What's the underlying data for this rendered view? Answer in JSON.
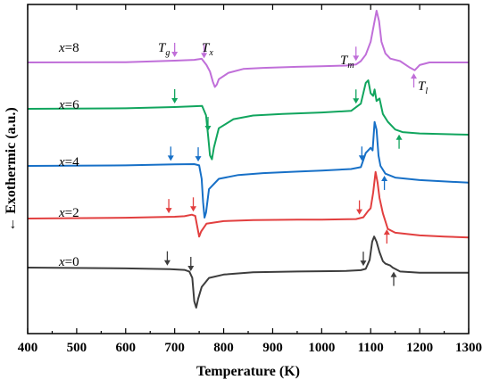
{
  "chart_data": {
    "type": "line",
    "xlabel": "Temperature (K)",
    "ylabel": "← Exothermic (a.u.)",
    "xlim": [
      400,
      1300
    ],
    "xticks": [
      400,
      500,
      600,
      700,
      800,
      900,
      1000,
      1100,
      1200,
      1300
    ],
    "y_tick_labels_shown": false,
    "grid": false,
    "legend": "none",
    "annotations": [
      "T_g",
      "T_x",
      "T_m",
      "T_l"
    ],
    "series": [
      {
        "name": "x=8",
        "prefix": "x",
        "suffix": "=8",
        "color": "#c06fd9",
        "points": [
          [
            400,
            0
          ],
          [
            600,
            0.1
          ],
          [
            700,
            0.7
          ],
          [
            740,
            1.0
          ],
          [
            755,
            1.4
          ],
          [
            765,
            -1.0
          ],
          [
            772,
            -3.5
          ],
          [
            778,
            -7.5
          ],
          [
            782,
            -9.5
          ],
          [
            786,
            -8.5
          ],
          [
            790,
            -6.5
          ],
          [
            810,
            -4.0
          ],
          [
            840,
            -2.5
          ],
          [
            880,
            -2.1
          ],
          [
            950,
            -1.7
          ],
          [
            1000,
            -1.5
          ],
          [
            1050,
            -1.2
          ],
          [
            1070,
            -0.8
          ],
          [
            1080,
            0.5
          ],
          [
            1090,
            3.0
          ],
          [
            1100,
            8.0
          ],
          [
            1106,
            14.0
          ],
          [
            1112,
            20.0
          ],
          [
            1117,
            16.0
          ],
          [
            1122,
            8.0
          ],
          [
            1130,
            3.5
          ],
          [
            1140,
            1.5
          ],
          [
            1160,
            0.5
          ],
          [
            1180,
            -2.0
          ],
          [
            1190,
            -3.0
          ],
          [
            1200,
            -1.0
          ],
          [
            1220,
            0
          ],
          [
            1300,
            0
          ]
        ],
        "arrows": [
          [
            700,
            "down"
          ],
          [
            760,
            "down"
          ],
          [
            1070,
            "down"
          ],
          [
            1188,
            "up"
          ]
        ]
      },
      {
        "name": "x=6",
        "prefix": "x",
        "suffix": "=6",
        "color": "#11a55e",
        "points": [
          [
            400,
            0
          ],
          [
            600,
            0.2
          ],
          [
            700,
            0.7
          ],
          [
            740,
            1.0
          ],
          [
            756,
            1.1
          ],
          [
            764,
            -2.5
          ],
          [
            768,
            -10.0
          ],
          [
            772,
            -18.0
          ],
          [
            776,
            -19.5
          ],
          [
            780,
            -15.0
          ],
          [
            790,
            -7.5
          ],
          [
            820,
            -4.0
          ],
          [
            860,
            -2.6
          ],
          [
            920,
            -2.0
          ],
          [
            1000,
            -1.4
          ],
          [
            1060,
            -0.8
          ],
          [
            1080,
            2.0
          ],
          [
            1090,
            10.0
          ],
          [
            1095,
            11.0
          ],
          [
            1100,
            6.0
          ],
          [
            1105,
            5.0
          ],
          [
            1108,
            7.5
          ],
          [
            1112,
            3.0
          ],
          [
            1118,
            4.0
          ],
          [
            1125,
            -2.0
          ],
          [
            1135,
            -5.0
          ],
          [
            1150,
            -8.0
          ],
          [
            1165,
            -9.0
          ],
          [
            1200,
            -9.5
          ],
          [
            1300,
            -10.0
          ]
        ],
        "arrows": [
          [
            700,
            "down"
          ],
          [
            768,
            "down"
          ],
          [
            1070,
            "down"
          ],
          [
            1158,
            "up"
          ]
        ]
      },
      {
        "name": "x=4",
        "prefix": "x",
        "suffix": "=4",
        "color": "#1770c7",
        "points": [
          [
            400,
            0
          ],
          [
            600,
            0.2
          ],
          [
            700,
            0.6
          ],
          [
            740,
            0.7
          ],
          [
            750,
            0.2
          ],
          [
            755,
            -5.0
          ],
          [
            758,
            -14.0
          ],
          [
            761,
            -20.0
          ],
          [
            764,
            -18.0
          ],
          [
            770,
            -9.0
          ],
          [
            790,
            -5.0
          ],
          [
            830,
            -3.5
          ],
          [
            880,
            -2.8
          ],
          [
            950,
            -2.2
          ],
          [
            1000,
            -1.8
          ],
          [
            1060,
            -1.2
          ],
          [
            1080,
            -0.5
          ],
          [
            1090,
            5.0
          ],
          [
            1095,
            6.0
          ],
          [
            1100,
            7.0
          ],
          [
            1104,
            6.0
          ],
          [
            1108,
            17.0
          ],
          [
            1112,
            14.0
          ],
          [
            1116,
            4.0
          ],
          [
            1120,
            0
          ],
          [
            1130,
            -3.0
          ],
          [
            1150,
            -4.5
          ],
          [
            1200,
            -5.5
          ],
          [
            1250,
            -6.0
          ],
          [
            1300,
            -6.5
          ]
        ],
        "arrows": [
          [
            692,
            "down"
          ],
          [
            748,
            "down"
          ],
          [
            1082,
            "down"
          ],
          [
            1128,
            "up"
          ]
        ]
      },
      {
        "name": "x=2",
        "prefix": "x",
        "suffix": "=2",
        "color": "#e23f3f",
        "points": [
          [
            400,
            0
          ],
          [
            600,
            0.3
          ],
          [
            700,
            0.7
          ],
          [
            720,
            0.9
          ],
          [
            735,
            1.5
          ],
          [
            742,
            1.0
          ],
          [
            746,
            -3.0
          ],
          [
            750,
            -7.0
          ],
          [
            754,
            -5.0
          ],
          [
            765,
            -2.0
          ],
          [
            800,
            -1.0
          ],
          [
            860,
            -0.6
          ],
          [
            950,
            -0.4
          ],
          [
            1000,
            -0.4
          ],
          [
            1070,
            -0.2
          ],
          [
            1085,
            0.5
          ],
          [
            1095,
            3.0
          ],
          [
            1100,
            4.0
          ],
          [
            1105,
            10.0
          ],
          [
            1110,
            18.0
          ],
          [
            1114,
            14.0
          ],
          [
            1118,
            8.0
          ],
          [
            1125,
            2.0
          ],
          [
            1135,
            -4.0
          ],
          [
            1150,
            -5.5
          ],
          [
            1200,
            -6.5
          ],
          [
            1250,
            -7.0
          ],
          [
            1300,
            -7.3
          ]
        ],
        "arrows": [
          [
            688,
            "down"
          ],
          [
            738,
            "down"
          ],
          [
            1077,
            "down"
          ],
          [
            1133,
            "up"
          ]
        ]
      },
      {
        "name": "x=0",
        "prefix": "x",
        "suffix": "=0",
        "color": "#3d3d3d",
        "points": [
          [
            400,
            0
          ],
          [
            600,
            -0.3
          ],
          [
            690,
            -0.6
          ],
          [
            720,
            -0.9
          ],
          [
            730,
            -1.5
          ],
          [
            736,
            -4.0
          ],
          [
            740,
            -13.0
          ],
          [
            744,
            -15.5
          ],
          [
            748,
            -12.0
          ],
          [
            755,
            -7.5
          ],
          [
            770,
            -4.0
          ],
          [
            800,
            -2.7
          ],
          [
            860,
            -1.8
          ],
          [
            950,
            -1.5
          ],
          [
            1050,
            -1.3
          ],
          [
            1080,
            -1.0
          ],
          [
            1090,
            -0.5
          ],
          [
            1098,
            3.0
          ],
          [
            1103,
            10.0
          ],
          [
            1107,
            12.0
          ],
          [
            1112,
            10.0
          ],
          [
            1118,
            6.0
          ],
          [
            1125,
            2.5
          ],
          [
            1130,
            1.5
          ],
          [
            1140,
            0.8
          ],
          [
            1145,
            0
          ],
          [
            1160,
            -1.5
          ],
          [
            1200,
            -2.0
          ],
          [
            1250,
            -2.0
          ],
          [
            1300,
            -2.0
          ]
        ],
        "arrows": [
          [
            685,
            "down"
          ],
          [
            733,
            "down"
          ],
          [
            1085,
            "down"
          ],
          [
            1147,
            "up"
          ]
        ]
      }
    ]
  }
}
